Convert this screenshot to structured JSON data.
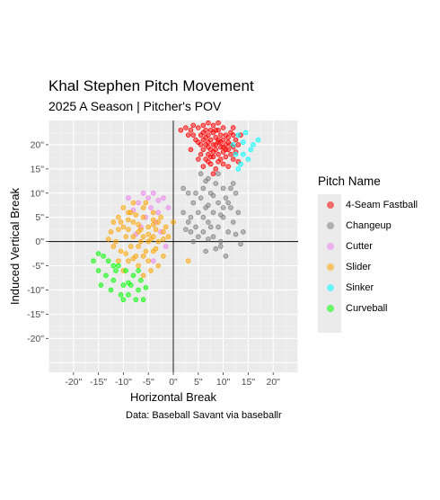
{
  "chart_data": {
    "type": "scatter",
    "title": "Khal Stephen Pitch Movement",
    "subtitle": "2025 A Season | Pitcher's POV",
    "xlabel": "Horizontal Break",
    "ylabel": "Induced Vertical Break",
    "caption": "Data: Baseball Savant via baseballr",
    "xlim": [
      -25,
      25
    ],
    "ylim": [
      -27,
      25
    ],
    "x_ticks": [
      {
        "value": -20,
        "label": "-20\""
      },
      {
        "value": -15,
        "label": "-15\""
      },
      {
        "value": -10,
        "label": "-10\""
      },
      {
        "value": -5,
        "label": "-5\""
      },
      {
        "value": 0,
        "label": "0\""
      },
      {
        "value": 5,
        "label": "5\""
      },
      {
        "value": 10,
        "label": "10\""
      },
      {
        "value": 15,
        "label": "15\""
      },
      {
        "value": 20,
        "label": "20\""
      }
    ],
    "y_ticks": [
      {
        "value": 20,
        "label": "20\""
      },
      {
        "value": 15,
        "label": "15\""
      },
      {
        "value": 10,
        "label": "10\""
      },
      {
        "value": 5,
        "label": "5\""
      },
      {
        "value": 0,
        "label": "0\""
      },
      {
        "value": -5,
        "label": "-5\""
      },
      {
        "value": -10,
        "label": "-10\""
      },
      {
        "value": -15,
        "label": "-15\""
      },
      {
        "value": -20,
        "label": "-20\""
      }
    ],
    "grid": true,
    "reference_lines": {
      "x": 0,
      "y": 0
    },
    "legend": {
      "title": "Pitch Name",
      "position": "right"
    },
    "series": [
      {
        "name": "4-Seam Fastball",
        "color": "#ff0000",
        "points": [
          [
            1.5,
            23
          ],
          [
            2.5,
            23.5
          ],
          [
            3,
            22
          ],
          [
            3.5,
            19
          ],
          [
            4,
            24
          ],
          [
            4.5,
            21
          ],
          [
            5,
            23.5
          ],
          [
            5,
            20.5
          ],
          [
            5.5,
            18
          ],
          [
            5.5,
            22
          ],
          [
            6,
            24
          ],
          [
            6,
            21
          ],
          [
            6,
            19
          ],
          [
            6.5,
            23
          ],
          [
            6.5,
            20
          ],
          [
            6.5,
            17
          ],
          [
            7,
            24.5
          ],
          [
            7,
            22
          ],
          [
            7,
            19.5
          ],
          [
            7,
            18
          ],
          [
            7.5,
            21
          ],
          [
            7.5,
            23
          ],
          [
            7.5,
            16
          ],
          [
            8,
            24
          ],
          [
            8,
            20
          ],
          [
            8,
            22.5
          ],
          [
            8,
            17.5
          ],
          [
            8.5,
            21.5
          ],
          [
            8.5,
            19
          ],
          [
            8.5,
            15
          ],
          [
            9,
            23
          ],
          [
            9,
            20.5
          ],
          [
            9,
            18
          ],
          [
            9,
            16.5
          ],
          [
            9.5,
            22
          ],
          [
            9.5,
            19.5
          ],
          [
            9.5,
            17
          ],
          [
            10,
            21
          ],
          [
            10,
            23.5
          ],
          [
            10,
            18.5
          ],
          [
            10,
            16
          ],
          [
            10.5,
            20
          ],
          [
            10.5,
            22
          ],
          [
            10.5,
            17.5
          ],
          [
            11,
            19
          ],
          [
            11,
            21.5
          ],
          [
            11,
            15.5
          ],
          [
            11.5,
            20
          ],
          [
            11.5,
            18
          ],
          [
            12,
            22
          ],
          [
            12,
            19.5
          ],
          [
            12,
            17
          ],
          [
            12.5,
            21
          ],
          [
            12.5,
            18.5
          ],
          [
            13,
            20
          ],
          [
            13,
            16.5
          ],
          [
            8,
            14
          ],
          [
            6,
            15.5
          ],
          [
            5,
            17
          ],
          [
            9,
            21
          ],
          [
            7,
            20.5
          ],
          [
            8.5,
            20
          ],
          [
            7.5,
            19
          ],
          [
            9.5,
            20.5
          ],
          [
            6.5,
            21.5
          ],
          [
            10.5,
            19
          ],
          [
            8,
            18.5
          ],
          [
            5.5,
            20
          ],
          [
            11,
            20.5
          ],
          [
            7,
            16.5
          ],
          [
            4,
            22
          ],
          [
            3.5,
            23
          ],
          [
            12,
            23.5
          ],
          [
            13.5,
            22
          ],
          [
            9,
            24.5
          ],
          [
            10,
            19.5
          ],
          [
            6,
            22.5
          ],
          [
            8.5,
            23
          ],
          [
            11.5,
            22.5
          ],
          [
            7.5,
            17.5
          ]
        ]
      },
      {
        "name": "Changeup",
        "color": "#7f7f7f",
        "points": [
          [
            2,
            11
          ],
          [
            3,
            10
          ],
          [
            4,
            8
          ],
          [
            3.5,
            5
          ],
          [
            4.5,
            3
          ],
          [
            5,
            6
          ],
          [
            5.5,
            9
          ],
          [
            6,
            2
          ],
          [
            6,
            11
          ],
          [
            6.5,
            7
          ],
          [
            7,
            4
          ],
          [
            7,
            13
          ],
          [
            7.5,
            10
          ],
          [
            8,
            6
          ],
          [
            8,
            1
          ],
          [
            8.5,
            12
          ],
          [
            9,
            8
          ],
          [
            9,
            3
          ],
          [
            9.5,
            -1
          ],
          [
            10,
            11
          ],
          [
            10,
            5
          ],
          [
            10.5,
            9
          ],
          [
            11,
            2
          ],
          [
            11.5,
            7
          ],
          [
            12,
            12
          ],
          [
            12,
            4
          ],
          [
            12.5,
            10
          ],
          [
            13,
            6
          ],
          [
            13.5,
            -0.5
          ],
          [
            14,
            2
          ],
          [
            5,
            1
          ],
          [
            4,
            0
          ],
          [
            3,
            4
          ],
          [
            2,
            6
          ],
          [
            7,
            0.5
          ],
          [
            8.5,
            -1.5
          ],
          [
            6.5,
            -2
          ],
          [
            9.5,
            0
          ],
          [
            10.5,
            -3
          ],
          [
            11,
            8
          ],
          [
            5.5,
            14
          ],
          [
            9,
            14
          ],
          [
            7.5,
            3
          ],
          [
            6,
            5
          ],
          [
            4.5,
            10
          ],
          [
            8,
            9.5
          ],
          [
            10,
            7
          ],
          [
            3.5,
            2
          ],
          [
            6.5,
            12.5
          ],
          [
            11.5,
            11
          ],
          [
            2.5,
            2.5
          ],
          [
            9.5,
            5.5
          ],
          [
            7,
            7.5
          ],
          [
            12.5,
            1.5
          ]
        ]
      },
      {
        "name": "Cutter",
        "color": "#ee82ee",
        "points": [
          [
            -5,
            9
          ],
          [
            -4,
            10
          ],
          [
            -3,
            8.5
          ],
          [
            -6,
            10
          ],
          [
            -2,
            9
          ],
          [
            -7,
            8
          ],
          [
            -4.5,
            7
          ],
          [
            -3,
            6
          ],
          [
            -8,
            6.5
          ],
          [
            -5.5,
            5
          ],
          [
            -9,
            9
          ],
          [
            -1,
            7
          ],
          [
            -3.5,
            4
          ],
          [
            -6.5,
            3
          ],
          [
            -2.5,
            2
          ],
          [
            -1.5,
            -1
          ],
          [
            -4,
            -4
          ],
          [
            -7.5,
            1.5
          ]
        ]
      },
      {
        "name": "Slider",
        "color": "#ffa500",
        "points": [
          [
            -11,
            5
          ],
          [
            -10,
            3
          ],
          [
            -9,
            6
          ],
          [
            -8,
            4
          ],
          [
            -7,
            2
          ],
          [
            -6,
            5
          ],
          [
            -5,
            3
          ],
          [
            -4,
            1
          ],
          [
            -3,
            4
          ],
          [
            -2,
            2
          ],
          [
            -9.5,
            1
          ],
          [
            -8.5,
            -1
          ],
          [
            -7.5,
            -3
          ],
          [
            -6.5,
            0
          ],
          [
            -5.5,
            -2
          ],
          [
            -4.5,
            0.5
          ],
          [
            -3.5,
            -1.5
          ],
          [
            -10.5,
            -2
          ],
          [
            -11.5,
            0
          ],
          [
            -12,
            -1
          ],
          [
            -13,
            0.5
          ],
          [
            -12.5,
            2
          ],
          [
            -10,
            7
          ],
          [
            -8,
            8
          ],
          [
            -6,
            7
          ],
          [
            -4,
            6
          ],
          [
            -9,
            -4
          ],
          [
            -7,
            -5
          ],
          [
            -5,
            -4
          ],
          [
            -10,
            -6
          ],
          [
            -4,
            -2
          ],
          [
            -2,
            -3
          ],
          [
            -1,
            1
          ],
          [
            0,
            4
          ],
          [
            3,
            -4
          ],
          [
            -6,
            -7
          ],
          [
            -8,
            -3.5
          ],
          [
            -11,
            -4
          ],
          [
            -3,
            -5
          ],
          [
            -7.5,
            5.5
          ],
          [
            -5.5,
            8
          ],
          [
            -9,
            2.5
          ],
          [
            -6.5,
            2.5
          ],
          [
            -4,
            3.5
          ],
          [
            -2.5,
            5
          ],
          [
            -1.5,
            3
          ],
          [
            -11,
            2.5
          ],
          [
            -8,
            1
          ],
          [
            -7,
            -1
          ],
          [
            -5,
            0
          ],
          [
            -3,
            0
          ],
          [
            -9.5,
            -2.5
          ],
          [
            -10.5,
            4
          ],
          [
            -12,
            4
          ],
          [
            -6,
            -3
          ],
          [
            -4.5,
            -6
          ],
          [
            -8.5,
            6
          ],
          [
            -7,
            3.5
          ],
          [
            -5,
            1.5
          ],
          [
            -3.5,
            2.5
          ],
          [
            -2,
            0.5
          ],
          [
            -9,
            4.5
          ],
          [
            -6,
            1
          ],
          [
            -4,
            4.5
          ]
        ]
      },
      {
        "name": "Sinker",
        "color": "#00ffff",
        "points": [
          [
            12,
            20
          ],
          [
            13,
            22
          ],
          [
            14,
            18
          ],
          [
            15,
            17
          ],
          [
            16,
            20
          ],
          [
            17,
            21
          ],
          [
            13.5,
            16
          ],
          [
            14.5,
            22.5
          ],
          [
            15.5,
            19
          ],
          [
            13,
            15
          ],
          [
            12.5,
            18
          ],
          [
            14,
            20.5
          ]
        ]
      },
      {
        "name": "Curveball",
        "color": "#00ff00",
        "points": [
          [
            -14,
            -3
          ],
          [
            -13,
            -4
          ],
          [
            -15,
            -6
          ],
          [
            -12,
            -8
          ],
          [
            -11,
            -5
          ],
          [
            -10,
            -9
          ],
          [
            -9,
            -11
          ],
          [
            -8,
            -7
          ],
          [
            -7,
            -10
          ],
          [
            -6,
            -12
          ],
          [
            -14.5,
            -9
          ],
          [
            -13.5,
            -7
          ],
          [
            -12.5,
            -10
          ],
          [
            -11.5,
            -6
          ],
          [
            -10.5,
            -11
          ],
          [
            -9.5,
            -6
          ],
          [
            -8.5,
            -9
          ],
          [
            -7.5,
            -12
          ],
          [
            -6.5,
            -8
          ],
          [
            -5.5,
            -9.5
          ],
          [
            -16,
            -4
          ],
          [
            -15,
            -2.5
          ],
          [
            -9,
            -8.5
          ],
          [
            -7,
            -6
          ],
          [
            -12,
            -5
          ],
          [
            -10,
            -12
          ]
        ]
      }
    ]
  }
}
